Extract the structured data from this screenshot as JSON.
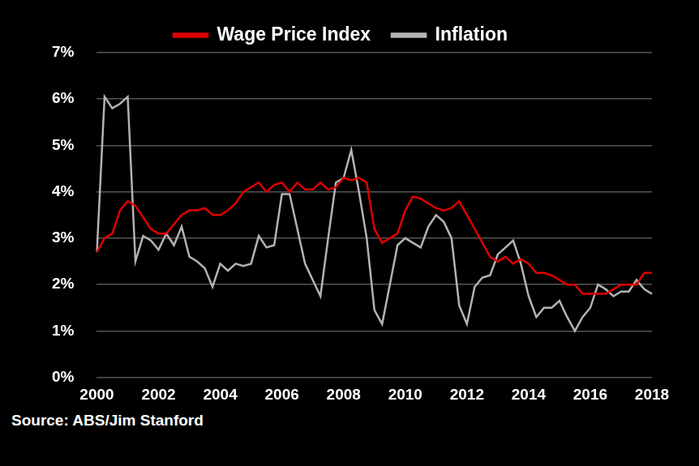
{
  "chart_data": {
    "type": "line",
    "annotation": "Source: ABS/Jim Stanford",
    "categories": [
      "2000",
      null,
      null,
      null,
      null,
      null,
      null,
      null,
      "2002",
      null,
      null,
      null,
      null,
      null,
      null,
      null,
      "2004",
      null,
      null,
      null,
      null,
      null,
      null,
      null,
      "2006",
      null,
      null,
      null,
      null,
      null,
      null,
      null,
      "2008",
      null,
      null,
      null,
      null,
      null,
      null,
      null,
      "2010",
      null,
      null,
      null,
      null,
      null,
      null,
      null,
      "2012",
      null,
      null,
      null,
      null,
      null,
      null,
      null,
      "2014",
      null,
      null,
      null,
      null,
      null,
      null,
      null,
      "2016",
      null,
      null,
      null,
      null,
      null,
      null,
      null,
      "2018"
    ],
    "series": [
      {
        "name": "Wage Price Index",
        "color": "#e00000",
        "values": [
          2.7,
          3.0,
          3.1,
          3.6,
          3.8,
          3.7,
          3.45,
          3.2,
          3.1,
          3.1,
          3.3,
          3.5,
          3.6,
          3.6,
          3.65,
          3.5,
          3.5,
          3.6,
          3.75,
          4.0,
          4.1,
          4.2,
          4.0,
          4.15,
          4.2,
          4.0,
          4.2,
          4.05,
          4.05,
          4.2,
          4.05,
          4.1,
          4.3,
          4.25,
          4.3,
          4.2,
          3.2,
          2.9,
          3.0,
          3.1,
          3.6,
          3.9,
          3.85,
          3.75,
          3.65,
          3.6,
          3.65,
          3.8,
          3.5,
          3.2,
          2.9,
          2.6,
          2.5,
          2.6,
          2.45,
          2.55,
          2.45,
          2.25,
          2.25,
          2.2,
          2.1,
          2.0,
          2.0,
          1.8,
          1.8,
          1.8,
          1.8,
          1.9,
          2.0,
          2.0,
          2.0,
          2.25,
          2.25
        ]
      },
      {
        "name": "Inflation",
        "color": "#b3b3b3",
        "values": [
          2.7,
          6.05,
          5.8,
          5.9,
          6.05,
          2.5,
          3.05,
          2.95,
          2.75,
          3.1,
          2.85,
          3.25,
          2.6,
          2.5,
          2.35,
          1.95,
          2.45,
          2.3,
          2.45,
          2.4,
          2.45,
          3.05,
          2.8,
          2.85,
          3.95,
          3.95,
          3.2,
          2.45,
          2.1,
          1.75,
          3.0,
          4.2,
          4.3,
          4.9,
          4.0,
          3.0,
          1.45,
          1.15,
          2.0,
          2.85,
          3.0,
          2.9,
          2.8,
          3.25,
          3.5,
          3.35,
          3.0,
          1.55,
          1.15,
          1.95,
          2.15,
          2.2,
          2.65,
          2.8,
          2.95,
          2.45,
          1.75,
          1.3,
          1.5,
          1.5,
          1.65,
          1.3,
          1.0,
          1.3,
          1.5,
          2.0,
          1.9,
          1.75,
          1.85,
          1.85,
          2.1,
          1.9,
          1.8
        ]
      }
    ],
    "ylim": [
      0,
      7
    ],
    "yticks": [
      {
        "value": 0,
        "label": "0%"
      },
      {
        "value": 1,
        "label": "1%"
      },
      {
        "value": 2,
        "label": "2%"
      },
      {
        "value": 3,
        "label": "3%"
      },
      {
        "value": 4,
        "label": "4%"
      },
      {
        "value": 5,
        "label": "5%"
      },
      {
        "value": 6,
        "label": "6%"
      },
      {
        "value": 7,
        "label": "7%"
      }
    ],
    "grid": true,
    "legend": "top"
  }
}
